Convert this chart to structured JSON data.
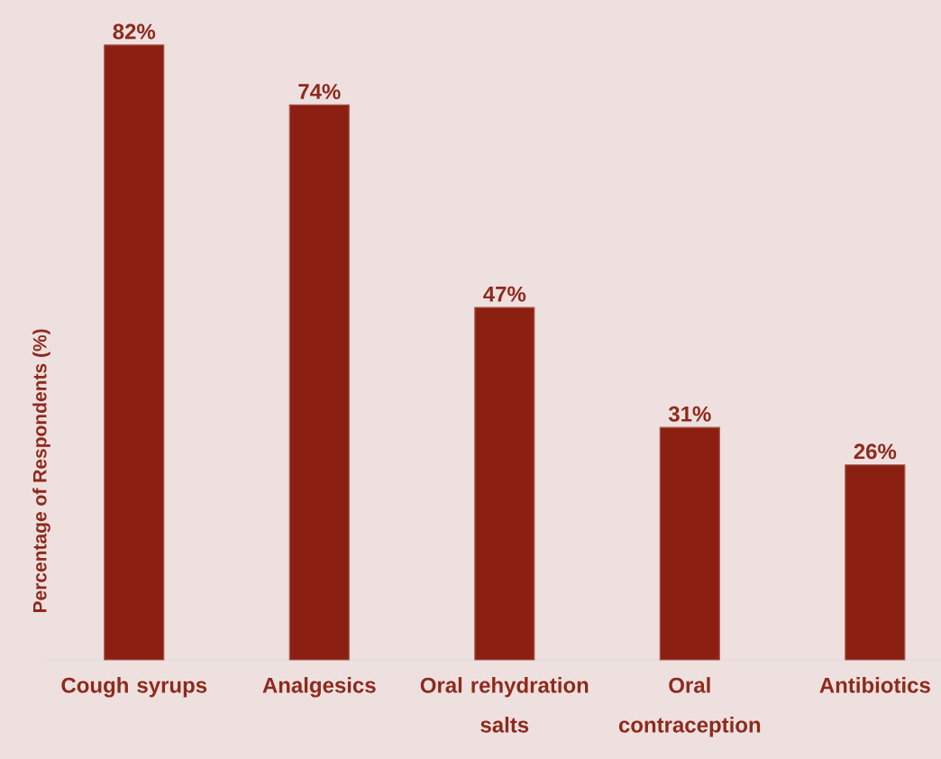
{
  "chart_data": {
    "type": "bar",
    "ylabel": "Percentage of Respondents (%)",
    "categories": [
      "Cough syrups",
      "Analgesics",
      "Oral rehydration salts",
      "Oral contraception",
      "Antibiotics"
    ],
    "values": [
      82,
      74,
      47,
      31,
      26
    ],
    "value_labels": [
      "82%",
      "74%",
      "47%",
      "31%",
      "26%"
    ],
    "color": "#8b2012",
    "ylim": [
      0,
      88
    ]
  }
}
